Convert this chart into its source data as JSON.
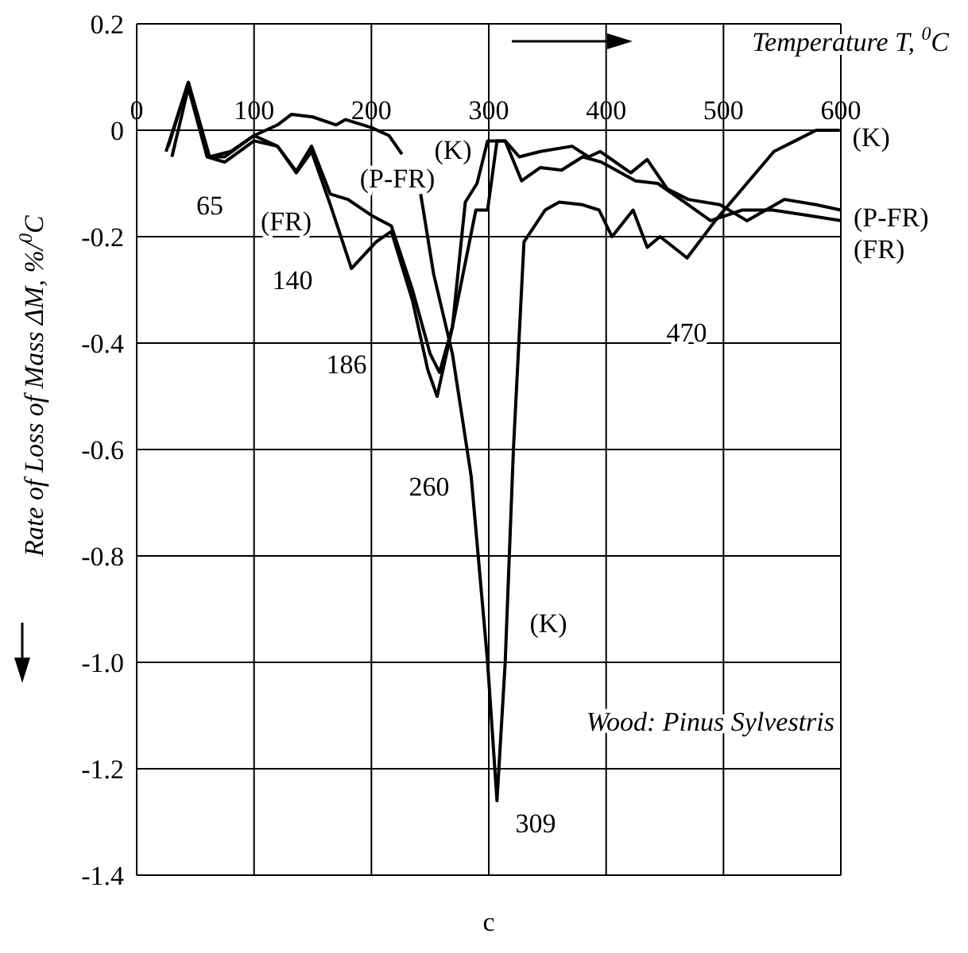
{
  "chart_data": {
    "type": "line",
    "xlabel": "Temperature T, $^{0}$C",
    "ylabel": "Rate of Loss of Mass ΔM, %/$^{0}$C",
    "xlim": [
      0,
      600
    ],
    "xticks": [
      0,
      100,
      200,
      300,
      400,
      500,
      600
    ],
    "ylim": [
      -1.4,
      0.2
    ],
    "yticks": [
      0.2,
      0,
      -0.2,
      -0.4,
      -0.6,
      -0.8,
      {
        "value": -1,
        "label": "-1.0"
      },
      -1.2,
      -1.4
    ],
    "grid": true,
    "legend": false,
    "marker": "none",
    "line_style": "solid",
    "series": [
      {
        "name": "(K)",
        "color": "#000000",
        "x": [
          27,
          44,
          62,
          80,
          100,
          120,
          132,
          150,
          170,
          178,
          200,
          215,
          226,
          234,
          242,
          253,
          269,
          285,
          299,
          307,
          314,
          321,
          330,
          348,
          360,
          380,
          394,
          405,
          423,
          435,
          446,
          469,
          493,
          516,
          543,
          561,
          579,
          599
        ],
        "values": [
          -0.03,
          0.09,
          -0.05,
          -0.04,
          -0.01,
          0.01,
          0.03,
          0.025,
          0.01,
          0.02,
          0.005,
          -0.01,
          -0.045,
          null,
          -0.12,
          -0.27,
          -0.42,
          -0.65,
          -1.0,
          -1.26,
          -1.0,
          -0.6,
          -0.21,
          -0.15,
          -0.135,
          -0.14,
          -0.15,
          -0.2,
          -0.15,
          -0.22,
          -0.2,
          -0.24,
          -0.17,
          -0.11,
          -0.04,
          -0.02,
          0.0,
          0.0
        ]
      },
      {
        "name": "(P-FR)",
        "color": "#000000",
        "x": [
          25,
          44,
          62,
          75,
          100,
          120,
          136,
          149,
          165,
          180,
          200,
          217,
          235,
          250,
          258,
          269,
          280,
          290,
          299,
          314,
          326,
          344,
          371,
          385,
          395,
          421,
          435,
          452,
          470,
          497,
          520,
          552,
          579,
          600
        ],
        "values": [
          -0.04,
          0.09,
          -0.05,
          -0.05,
          -0.01,
          -0.03,
          -0.077,
          -0.03,
          -0.12,
          -0.13,
          -0.16,
          -0.18,
          -0.3,
          -0.42,
          -0.455,
          -0.37,
          -0.135,
          -0.1,
          -0.02,
          -0.02,
          -0.05,
          -0.04,
          -0.03,
          -0.05,
          -0.04,
          -0.08,
          -0.055,
          -0.11,
          -0.13,
          -0.14,
          -0.17,
          -0.13,
          -0.14,
          -0.15
        ]
      },
      {
        "name": "(FR)",
        "color": "#000000",
        "x": [
          30,
          44,
          60,
          75,
          100,
          120,
          136,
          149,
          165,
          183,
          204,
          217,
          235,
          248,
          256,
          269,
          289,
          299,
          307,
          314,
          328,
          344,
          362,
          380,
          396,
          425,
          444,
          470,
          489,
          516,
          542,
          572,
          600
        ],
        "values": [
          -0.05,
          0.08,
          -0.05,
          -0.06,
          -0.02,
          -0.03,
          -0.08,
          -0.04,
          -0.14,
          -0.26,
          -0.21,
          -0.19,
          -0.32,
          -0.45,
          -0.5,
          -0.37,
          -0.15,
          -0.15,
          -0.02,
          -0.02,
          -0.095,
          -0.07,
          -0.075,
          -0.05,
          -0.06,
          -0.095,
          -0.1,
          -0.14,
          -0.17,
          -0.15,
          -0.15,
          -0.16,
          -0.17
        ]
      }
    ],
    "annotations": [
      "65",
      "(FR)",
      "140",
      "186",
      "260",
      "309",
      "(K)",
      "(K)",
      "(P-FR)",
      "470",
      "Wood: Pinus Sylvestris",
      "c"
    ]
  }
}
